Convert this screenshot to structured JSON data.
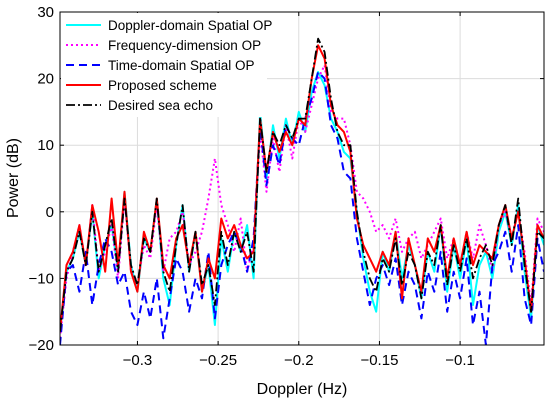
{
  "chart_data": {
    "type": "line",
    "title": "",
    "xlabel": "Doppler (Hz)",
    "ylabel": "Power (dB)",
    "xlim": [
      -0.348,
      -0.048
    ],
    "ylim": [
      -20,
      30
    ],
    "xticks": [
      -0.3,
      -0.25,
      -0.2,
      -0.15,
      -0.1
    ],
    "xtick_labels": [
      "−0.3",
      "−0.25",
      "−0.2",
      "−0.15",
      "−0.1"
    ],
    "yticks": [
      -20,
      -10,
      0,
      10,
      20,
      30
    ],
    "ytick_labels": [
      "−20",
      "−10",
      "0",
      "10",
      "20",
      "30"
    ],
    "grid": true,
    "legend_position": "top-left",
    "x": [
      -0.348,
      -0.344,
      -0.34,
      -0.336,
      -0.332,
      -0.328,
      -0.324,
      -0.32,
      -0.316,
      -0.312,
      -0.308,
      -0.304,
      -0.3,
      -0.296,
      -0.292,
      -0.288,
      -0.284,
      -0.28,
      -0.276,
      -0.272,
      -0.268,
      -0.264,
      -0.26,
      -0.256,
      -0.252,
      -0.248,
      -0.244,
      -0.24,
      -0.236,
      -0.232,
      -0.228,
      -0.224,
      -0.22,
      -0.216,
      -0.212,
      -0.208,
      -0.204,
      -0.2,
      -0.196,
      -0.192,
      -0.188,
      -0.184,
      -0.18,
      -0.176,
      -0.172,
      -0.168,
      -0.164,
      -0.16,
      -0.156,
      -0.152,
      -0.148,
      -0.144,
      -0.14,
      -0.136,
      -0.132,
      -0.128,
      -0.124,
      -0.12,
      -0.116,
      -0.112,
      -0.108,
      -0.104,
      -0.1,
      -0.096,
      -0.092,
      -0.088,
      -0.084,
      -0.08,
      -0.076,
      -0.072,
      -0.068,
      -0.064,
      -0.06,
      -0.056,
      -0.052,
      -0.048
    ],
    "series": [
      {
        "name": "Doppler-domain Spatial OP",
        "color": "#00FFFF",
        "dash": "solid",
        "values": [
          -18,
          -9,
          -7,
          -3,
          -8,
          0,
          -10,
          -5,
          -2,
          -9,
          3,
          -8,
          -12,
          -4,
          -6,
          2,
          -10,
          -14,
          -5,
          1,
          -9,
          -3,
          -12,
          -8,
          -17,
          -4,
          -9,
          -3,
          -6,
          -2,
          -10,
          15,
          5,
          13,
          8,
          14,
          10,
          15,
          12,
          18,
          21,
          19,
          14,
          12,
          9,
          8,
          0,
          -7,
          -12,
          -15,
          -6,
          -9,
          -3,
          -10,
          -5,
          -8,
          -13,
          -6,
          -9,
          -2,
          -12,
          -5,
          -10,
          -4,
          -14,
          -8,
          -6,
          -10,
          -3,
          0,
          -5,
          1,
          -9,
          -16,
          -2,
          -5
        ]
      },
      {
        "name": "Frequency-dimension OP",
        "color": "#FF00FF",
        "dash": "dot",
        "values": [
          -19,
          -10,
          -6,
          -2,
          -8,
          1,
          -9,
          -6,
          -2,
          -10,
          2,
          -9,
          -11,
          -5,
          -7,
          1,
          -9,
          -4,
          -3,
          0,
          -8,
          -6,
          -3,
          2,
          8,
          1,
          -2,
          -6,
          -1,
          -9,
          -5,
          12,
          3,
          11,
          6,
          13,
          8,
          14,
          12,
          16,
          20,
          22,
          15,
          14,
          14,
          10,
          3,
          2,
          0,
          -3,
          -2,
          -4,
          -1,
          -6,
          -4,
          -3,
          -7,
          -5,
          -3,
          -1,
          -7,
          -4,
          -8,
          -3,
          -7,
          -2,
          -5,
          -9,
          -2,
          0,
          -4,
          0,
          -6,
          -14,
          -1,
          -3
        ]
      },
      {
        "name": "Time-domain Spatial OP",
        "color": "#0000FF",
        "dash": "dash",
        "values": [
          -20,
          -9,
          -8,
          -12,
          -6,
          -14,
          -8,
          -4,
          -6,
          -11,
          -9,
          -15,
          -17,
          -12,
          -16,
          -10,
          -19,
          -13,
          -7,
          -9,
          -15,
          -10,
          -13,
          -6,
          -16,
          -8,
          -5,
          -3,
          -5,
          -9,
          -4,
          13,
          4,
          10,
          7,
          13,
          11,
          10,
          14,
          17,
          21,
          20,
          13,
          11,
          6,
          5,
          -4,
          -9,
          -14,
          -10,
          -8,
          -11,
          -7,
          -14,
          -9,
          -11,
          -16,
          -9,
          -12,
          -6,
          -15,
          -9,
          -13,
          -7,
          -17,
          -12,
          -20,
          -8,
          -6,
          -3,
          -9,
          -2,
          -13,
          -17,
          -4,
          -9
        ]
      },
      {
        "name": "Proposed scheme",
        "color": "#FF0000",
        "dash": "solid",
        "values": [
          -18,
          -8,
          -6,
          -2,
          -8,
          1,
          -3,
          -9,
          2,
          -8,
          3,
          -9,
          -12,
          -3,
          -6,
          2,
          -8,
          -10,
          -4,
          -2,
          -8,
          -3,
          -12,
          -7,
          -10,
          -1,
          -4,
          -2,
          -5,
          -7,
          -6,
          14,
          6,
          12,
          9,
          12,
          10,
          14,
          13,
          20,
          25,
          23,
          16,
          13,
          12,
          9,
          -1,
          -5,
          -7,
          -9,
          -6,
          -8,
          -3,
          -13,
          -4,
          -8,
          -12,
          -4,
          -6,
          -2,
          -10,
          -4,
          -8,
          -3,
          -8,
          -5,
          -6,
          -7,
          -2,
          1,
          -4,
          0,
          -7,
          -15,
          -2,
          -4
        ]
      },
      {
        "name": "Desired sea echo",
        "color": "#000000",
        "dash": "dashdot",
        "values": [
          -18,
          -9,
          -7,
          -3,
          -8,
          0,
          -9,
          -5,
          -1,
          -9,
          2,
          -8,
          -11,
          -4,
          -6,
          2,
          -9,
          -12,
          -5,
          1,
          -9,
          -3,
          -11,
          -8,
          -14,
          -3,
          -8,
          -3,
          -6,
          -3,
          -9,
          14,
          6,
          12,
          10,
          13,
          11,
          14,
          14,
          20,
          26,
          24,
          17,
          12,
          10,
          10,
          0,
          -6,
          -10,
          -12,
          -7,
          -9,
          -4,
          -11,
          -6,
          -8,
          -13,
          -6,
          -8,
          -2,
          -11,
          -5,
          -9,
          -4,
          -10,
          -7,
          -5,
          -8,
          -2,
          1,
          -5,
          2,
          -8,
          -15,
          -3,
          -4
        ]
      }
    ]
  }
}
